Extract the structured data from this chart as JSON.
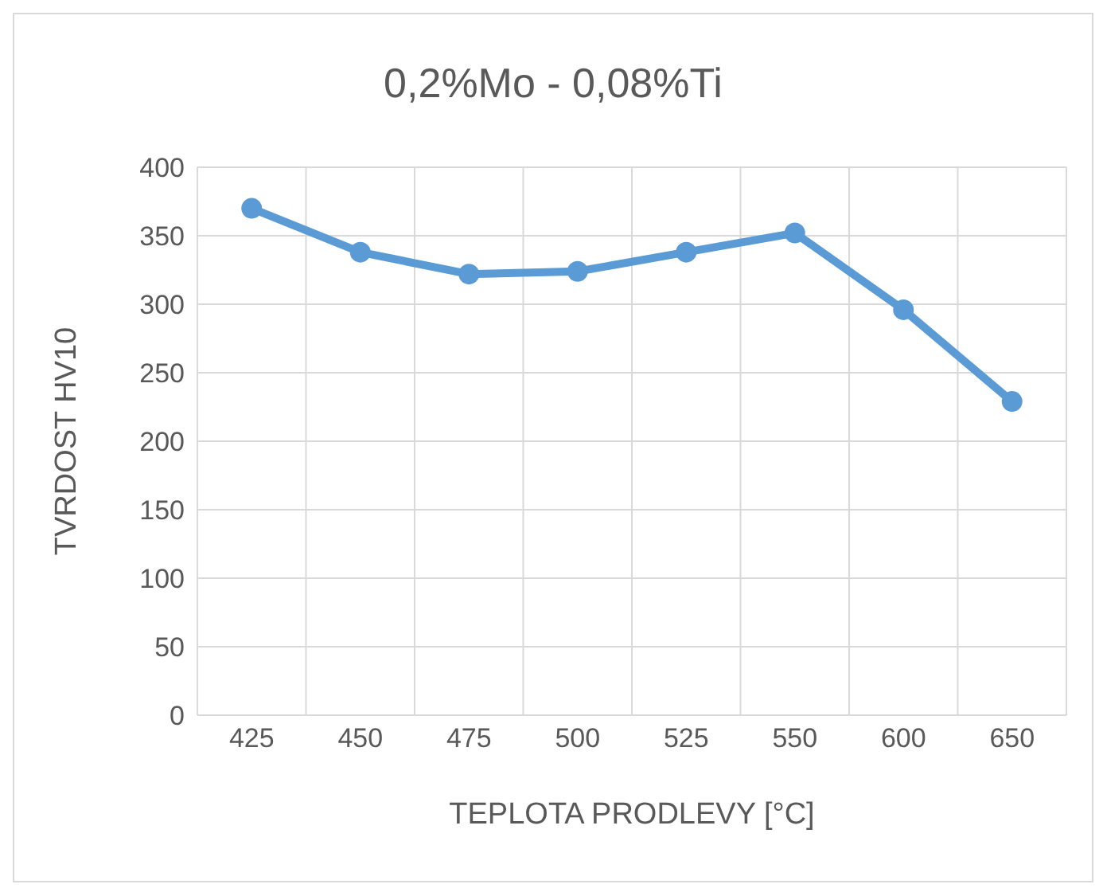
{
  "chart_data": {
    "type": "line",
    "title": "0,2%Mo - 0,08%Ti",
    "xlabel": "TEPLOTA PRODLEVY [°C]",
    "ylabel": "TVRDOST HV10",
    "categories": [
      "425",
      "450",
      "475",
      "500",
      "525",
      "550",
      "600",
      "650"
    ],
    "series": [
      {
        "color": "#5b9bd5",
        "values": [
          370,
          338,
          322,
          324,
          338,
          352,
          296,
          229
        ]
      }
    ],
    "ylim": [
      0,
      400
    ],
    "yticks": [
      0,
      50,
      100,
      150,
      200,
      250,
      300,
      350,
      400
    ],
    "grid": true,
    "marker": "circle",
    "line_style": "solid"
  }
}
